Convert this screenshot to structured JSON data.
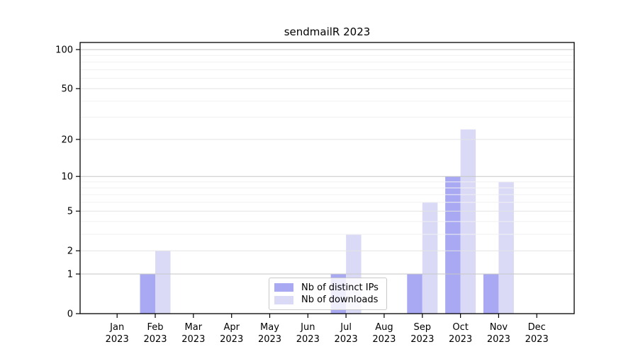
{
  "chart_data": {
    "type": "bar",
    "title": "sendmailR 2023",
    "year": "2023",
    "months": [
      "Jan",
      "Feb",
      "Mar",
      "Apr",
      "May",
      "Jun",
      "Jul",
      "Aug",
      "Sep",
      "Oct",
      "Nov",
      "Dec"
    ],
    "series": [
      {
        "name": "Nb of distinct IPs",
        "color": "#a9a9f3",
        "values": [
          0,
          1,
          0,
          0,
          0,
          0,
          1,
          0,
          1,
          10,
          1,
          0
        ]
      },
      {
        "name": "Nb of downloads",
        "color": "#dadaf7",
        "values": [
          0,
          2,
          0,
          0,
          0,
          0,
          3,
          0,
          6,
          24,
          9,
          0
        ]
      }
    ],
    "y_axis": {
      "scale": "log1p",
      "tick_values": [
        0,
        1,
        2,
        5,
        10,
        20,
        50,
        100
      ],
      "major_gridlines": [
        1,
        10,
        100
      ],
      "mid_gridlines": [
        2,
        5,
        20,
        50
      ],
      "minor_gridlines": [
        3,
        4,
        6,
        7,
        8,
        9,
        30,
        40,
        60,
        70,
        80,
        90
      ],
      "ylim": [
        0,
        100
      ]
    },
    "legend": {
      "position": "lower-center"
    },
    "grid": true
  },
  "colors": {
    "spine": "#000000",
    "tick": "#000000",
    "text": "#000000",
    "grid_major": "#c6c6c6",
    "grid_mid": "#e3e3e3",
    "grid_minor": "#f1f1f1",
    "legend_border": "#c9c9c9",
    "background": "#ffffff"
  }
}
